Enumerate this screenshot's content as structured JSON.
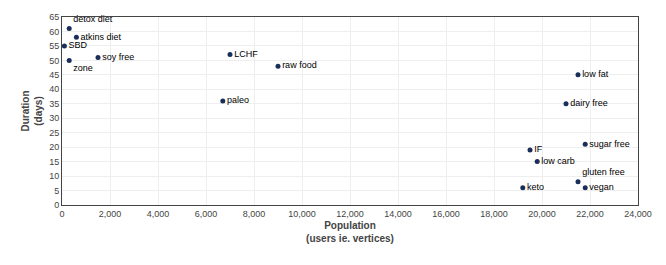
{
  "chart_data": {
    "type": "scatter",
    "x": [
      300,
      600,
      100,
      300,
      1500,
      7000,
      9000,
      6700,
      21500,
      21000,
      21800,
      19500,
      19800,
      21500,
      19200,
      21800
    ],
    "values": [
      61,
      58,
      55,
      50,
      51,
      52,
      48,
      36,
      45,
      35,
      21,
      19,
      15,
      8,
      6,
      6
    ],
    "labels": [
      "detox diet",
      "atkins diet",
      "SBD",
      "zone",
      "soy free",
      "LCHF",
      "raw food",
      "paleo",
      "low fat",
      "dairy free",
      "sugar free",
      "IF",
      "low carb",
      "gluten free",
      "keto",
      "vegan"
    ],
    "color": "#1a2e5a",
    "xlabel": "Population\n(users ie. vertices)",
    "ylabel": "Duration\n(days)",
    "xlim": [
      0,
      24000
    ],
    "ylim": [
      0,
      65
    ],
    "xticks": [
      0,
      {
        "value": 2000,
        "label": "2,000"
      },
      {
        "value": 4000,
        "label": "4,000"
      },
      {
        "value": 6000,
        "label": "6,000"
      },
      {
        "value": 8000,
        "label": "8,000"
      },
      {
        "value": 10000,
        "label": "10,000"
      },
      {
        "value": 12000,
        "label": "12,000"
      },
      {
        "value": 14000,
        "label": "14,000"
      },
      {
        "value": 16000,
        "label": "16,000"
      },
      {
        "value": 18000,
        "label": "18,000"
      },
      {
        "value": 20000,
        "label": "20,000"
      },
      {
        "value": 22000,
        "label": "22,000"
      },
      {
        "value": 24000,
        "label": "24,000"
      }
    ],
    "yticks": [
      0,
      5,
      10,
      15,
      20,
      25,
      30,
      35,
      40,
      45,
      50,
      55,
      60,
      65
    ],
    "grid": true
  }
}
